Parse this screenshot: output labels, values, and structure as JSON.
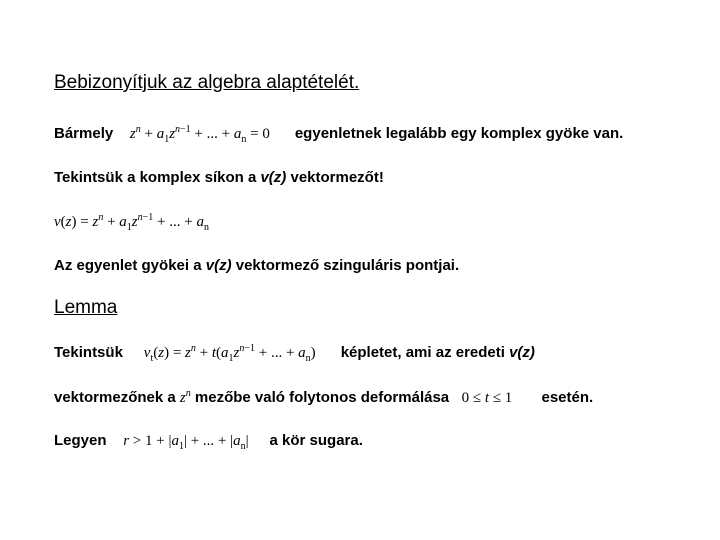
{
  "title": "Bebizonyítjuk az algebra alaptételét.",
  "p1": {
    "t1": "Bármely",
    "eq": "z^n + a_1 z^{n-1} + ... + a_n = 0",
    "t2": "egyenletnek legalább egy komplex gyöke van."
  },
  "p2": {
    "t1": "Tekintsük a komplex síkon a ",
    "vz": "v(z)",
    "t2": " vektormezőt!"
  },
  "eq2": "v(z) = z^n + a_1 z^{n-1} + ... + a_n",
  "p3": {
    "t1": "Az egyenlet gyökei a ",
    "vz": "v(z)",
    "t2": " vektormező szinguláris pontjai."
  },
  "lemma": "Lemma",
  "p4": {
    "t1": "Tekintsük",
    "eq": "v_t(z) = z^n + t(a_1 z^{n-1} + ... + a_n)",
    "t2": "képletet, ami az eredeti ",
    "vz": "v(z)"
  },
  "p5": {
    "t1": "vektormezőnek a ",
    "zn": "z^n",
    "t2": " mezőbe való folytonos deformálása ",
    "cond": "0 ≤ t ≤ 1",
    "t3": "esetén."
  },
  "p6": {
    "t1": "Legyen",
    "eq": "r > 1 + |a_1| + ... + |a_n|",
    "t2": "a kör sugara."
  },
  "styles": {
    "font_body": "Arial",
    "font_math": "Times New Roman",
    "fontsize_body_pt": 11,
    "fontsize_heading_pt": 14,
    "color_text": "#000000",
    "color_bg": "#ffffff"
  }
}
